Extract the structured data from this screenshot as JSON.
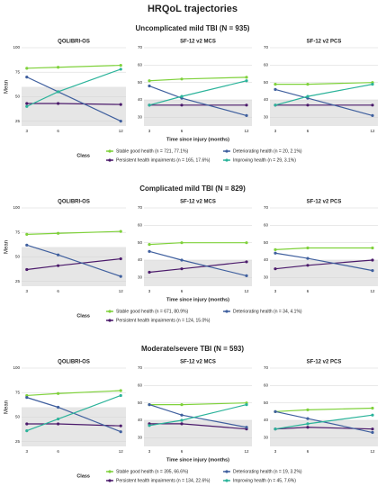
{
  "title": "HRQoL trajectories",
  "chart_data": [
    {
      "type": "line",
      "title": "Uncomplicated mild TBI (N = 935)",
      "x": [
        3,
        6,
        12
      ],
      "xlim": [
        2.5,
        12.5
      ],
      "xticks": [
        3,
        6,
        12
      ],
      "xlabel": "Time since injury (months)",
      "ylabel": "Mean",
      "legend_title": "Class",
      "series": [
        {
          "name": "Stable good health (n = 721, 77.1%)",
          "color": "#7fd13b"
        },
        {
          "name": "Persistent health impairments (n = 165, 17.6%)",
          "color": "#4b1a6b"
        },
        {
          "name": "Deteriorating health (n = 20, 2.1%)",
          "color": "#3f5f9e"
        },
        {
          "name": "Improving health (n = 29, 3.1%)",
          "color": "#2bb39a"
        }
      ],
      "panels": [
        {
          "title": "QOLIBRI-OS",
          "ylim": [
            20,
            100
          ],
          "yticks": [
            25,
            50,
            75,
            100
          ],
          "shade_below": 60,
          "values": [
            [
              79,
              80,
              82
            ],
            [
              43,
              43,
              42
            ],
            [
              70,
              55,
              25
            ],
            [
              40,
              55,
              78
            ]
          ]
        },
        {
          "title": "SF-12 v2 MCS",
          "ylim": [
            25,
            70
          ],
          "yticks": [
            30,
            40,
            50,
            60,
            70
          ],
          "shade_below": 40,
          "values": [
            [
              51,
              52,
              53
            ],
            [
              37,
              37,
              37
            ],
            [
              48,
              41,
              31
            ],
            [
              37,
              42,
              51
            ]
          ]
        },
        {
          "title": "SF-12 v2 PCS",
          "ylim": [
            25,
            70
          ],
          "yticks": [
            30,
            40,
            50,
            60,
            70
          ],
          "shade_below": 40,
          "values": [
            [
              49,
              49,
              50
            ],
            [
              37,
              37,
              37
            ],
            [
              46,
              41,
              31
            ],
            [
              37,
              42,
              49
            ]
          ]
        }
      ]
    },
    {
      "type": "line",
      "title": "Complicated mild TBI (N = 829)",
      "x": [
        3,
        6,
        12
      ],
      "xlim": [
        2.5,
        12.5
      ],
      "xticks": [
        3,
        6,
        12
      ],
      "xlabel": "Time since injury (months)",
      "ylabel": "Mean",
      "legend_title": "Class",
      "series": [
        {
          "name": "Stable good health (n = 671, 80.9%)",
          "color": "#7fd13b"
        },
        {
          "name": "Persistent health impairments (n = 124, 15.0%)",
          "color": "#4b1a6b"
        },
        {
          "name": "Deteriorating health (n = 34, 4.1%)",
          "color": "#3f5f9e"
        }
      ],
      "panels": [
        {
          "title": "QOLIBRI-OS",
          "ylim": [
            20,
            100
          ],
          "yticks": [
            25,
            50,
            75,
            100
          ],
          "shade_below": 60,
          "values": [
            [
              73,
              74,
              76
            ],
            [
              37,
              41,
              48
            ],
            [
              62,
              52,
              30
            ]
          ]
        },
        {
          "title": "SF-12 v2 MCS",
          "ylim": [
            25,
            70
          ],
          "yticks": [
            30,
            40,
            50,
            60,
            70
          ],
          "shade_below": 40,
          "values": [
            [
              49,
              50,
              50
            ],
            [
              33,
              35,
              39
            ],
            [
              45,
              40,
              31
            ]
          ]
        },
        {
          "title": "SF-12 v2 PCS",
          "ylim": [
            25,
            70
          ],
          "yticks": [
            30,
            40,
            50,
            60,
            70
          ],
          "shade_below": 40,
          "values": [
            [
              46,
              47,
              47
            ],
            [
              35,
              37,
              40
            ],
            [
              44,
              41,
              34
            ]
          ]
        }
      ]
    },
    {
      "type": "line",
      "title": "Moderate/severe TBI (N = 593)",
      "x": [
        3,
        6,
        12
      ],
      "xlim": [
        2.5,
        12.5
      ],
      "xticks": [
        3,
        6,
        12
      ],
      "xlabel": "Time since injury (months)",
      "ylabel": "Mean",
      "legend_title": "Class",
      "series": [
        {
          "name": "Stable good health (n = 395, 66.6%)",
          "color": "#7fd13b"
        },
        {
          "name": "Persistent health impairments (n = 134, 22.6%)",
          "color": "#4b1a6b"
        },
        {
          "name": "Deteriorating health (n = 19, 3.2%)",
          "color": "#3f5f9e"
        },
        {
          "name": "Improving health (n = 45, 7.6%)",
          "color": "#2bb39a"
        }
      ],
      "panels": [
        {
          "title": "QOLIBRI-OS",
          "ylim": [
            20,
            100
          ],
          "yticks": [
            25,
            50,
            75,
            100
          ],
          "shade_below": 60,
          "values": [
            [
              72,
              74,
              77
            ],
            [
              43,
              43,
              41
            ],
            [
              70,
              60,
              35
            ],
            [
              36,
              48,
              72
            ]
          ]
        },
        {
          "title": "SF-12 v2 MCS",
          "ylim": [
            25,
            70
          ],
          "yticks": [
            30,
            40,
            50,
            60,
            70
          ],
          "shade_below": 40,
          "values": [
            [
              49,
              49,
              50
            ],
            [
              38,
              38,
              35
            ],
            [
              49,
              43,
              36
            ],
            [
              37,
              40,
              49
            ]
          ]
        },
        {
          "title": "SF-12 v2 PCS",
          "ylim": [
            25,
            70
          ],
          "yticks": [
            30,
            40,
            50,
            60,
            70
          ],
          "shade_below": 40,
          "values": [
            [
              45,
              46,
              47
            ],
            [
              35,
              36,
              35
            ],
            [
              45,
              41,
              33
            ],
            [
              35,
              38,
              43
            ]
          ]
        }
      ]
    }
  ]
}
